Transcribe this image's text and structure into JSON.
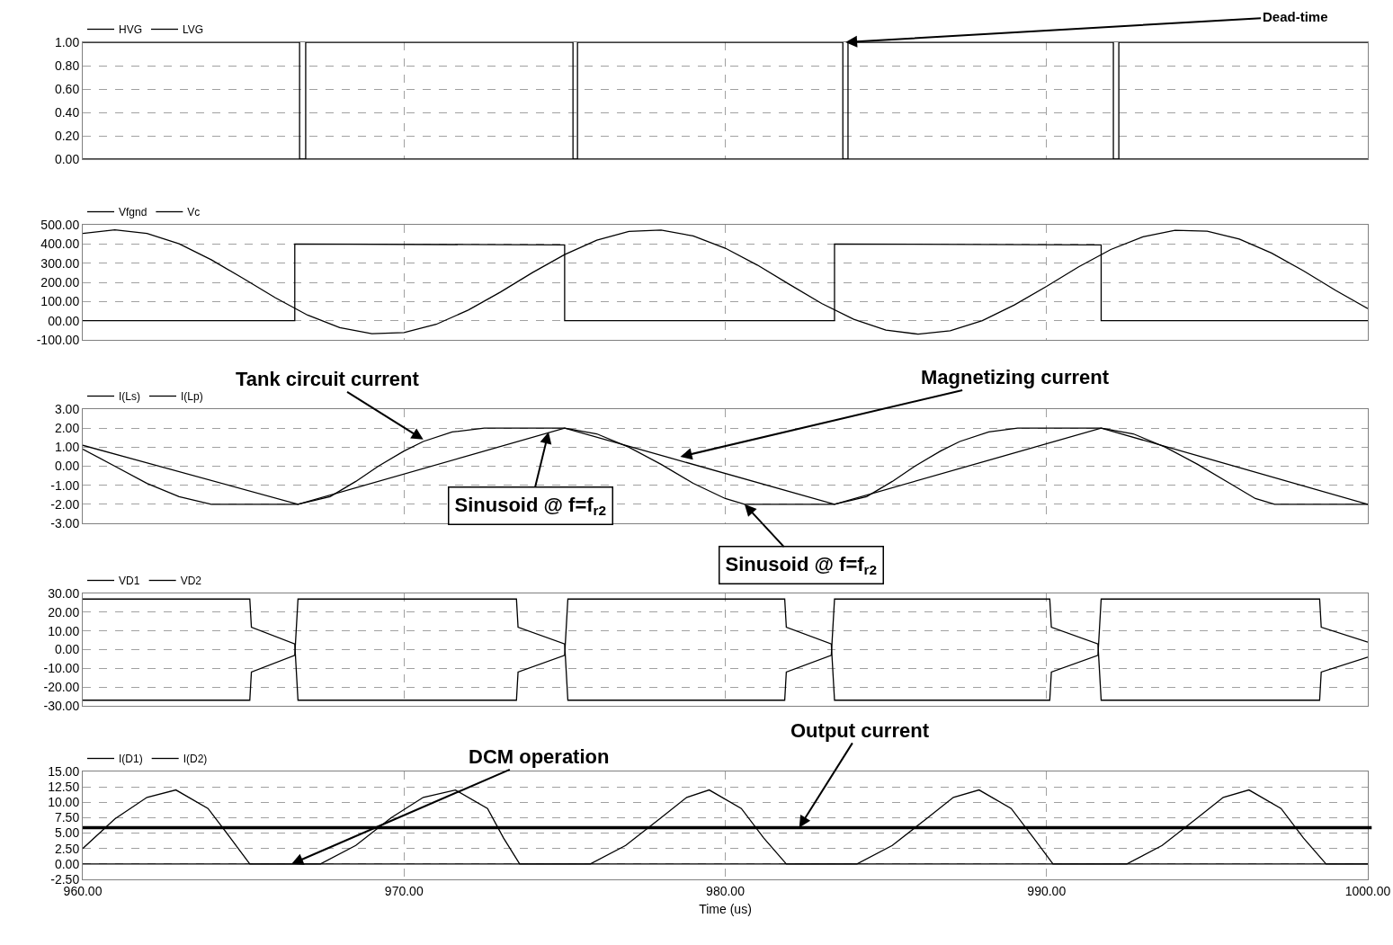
{
  "chart_data": [
    {
      "type": "line",
      "xlim": [
        960,
        1000
      ],
      "xticks": [
        960,
        970,
        980,
        990,
        1000
      ],
      "tick_labels": "y",
      "grid": true,
      "legend": "top left",
      "ylim": [
        0,
        1
      ],
      "yticks": [
        {
          "value": 0,
          "label": "0.00"
        },
        {
          "value": 0.2,
          "label": "0.20"
        },
        {
          "value": 0.4,
          "label": "0.40"
        },
        {
          "value": 0.6,
          "label": "0.60"
        },
        {
          "value": 0.8,
          "label": "0.80"
        },
        {
          "value": 1,
          "label": "1.00"
        }
      ],
      "series": [
        {
          "name": "HVG",
          "color": "#000000",
          "x": [
            960,
            966.75,
            966.75,
            975.4,
            975.4,
            983.66,
            983.66,
            992.25,
            992.25,
            1000
          ],
          "values": [
            1,
            1,
            0,
            0,
            1,
            1,
            0,
            0,
            1,
            1
          ]
        },
        {
          "name": "LVG",
          "color": "#000000",
          "x": [
            960,
            966.94,
            966.94,
            975.26,
            975.26,
            983.82,
            983.82,
            992.08,
            992.08,
            1000
          ],
          "values": [
            0,
            0,
            1,
            1,
            0,
            0,
            1,
            1,
            0,
            0
          ]
        }
      ],
      "annotations": [
        {
          "text": "Dead-time",
          "x": 983.74,
          "y": 1
        }
      ]
    },
    {
      "type": "line",
      "xlim": [
        960,
        1000
      ],
      "xticks": [
        960,
        970,
        980,
        990,
        1000
      ],
      "tick_labels": "y",
      "grid": true,
      "legend": "top left",
      "ylim": [
        -100,
        500
      ],
      "yticks": [
        {
          "value": -100,
          "label": "-100.00"
        },
        {
          "value": 0,
          "label": "00.00"
        },
        {
          "value": 100,
          "label": "100.00"
        },
        {
          "value": 200,
          "label": "200.00"
        },
        {
          "value": 300,
          "label": "300.00"
        },
        {
          "value": 400,
          "label": "400.00"
        },
        {
          "value": 500,
          "label": "500.00"
        }
      ],
      "series": [
        {
          "name": "Vfgnd",
          "color": "#000000",
          "x": [
            960,
            966.6,
            966.6,
            975.0,
            975.0,
            983.4,
            983.4,
            991.7,
            991.7,
            1000
          ],
          "values": [
            0,
            0,
            400,
            395,
            0,
            0,
            400,
            395,
            0,
            0
          ]
        },
        {
          "name": "Vc",
          "color": "#000000",
          "x": [
            960,
            961,
            962,
            963,
            964,
            965,
            966,
            967,
            968,
            969,
            970,
            971,
            972,
            973,
            974,
            975,
            976,
            977,
            978,
            979,
            980,
            981,
            982,
            983,
            984,
            985,
            986,
            987,
            988,
            989,
            990,
            991,
            992,
            993,
            994,
            995,
            996,
            997,
            998,
            999,
            1000
          ],
          "values": [
            455,
            474,
            455,
            401,
            318,
            220,
            119,
            29,
            -36,
            -68,
            -62,
            -19,
            55,
            149,
            251,
            345,
            420,
            465,
            472,
            442,
            378,
            290,
            189,
            90,
            7,
            -49,
            -70,
            -53,
            0,
            82,
            179,
            281,
            371,
            437,
            471,
            467,
            426,
            353,
            260,
            158,
            63
          ]
        }
      ]
    },
    {
      "type": "line",
      "xlim": [
        960,
        1000
      ],
      "xticks": [
        960,
        970,
        980,
        990,
        1000
      ],
      "tick_labels": "y",
      "grid": true,
      "legend": "top left",
      "ylim": [
        -3,
        3
      ],
      "yticks": [
        {
          "value": -3,
          "label": "-3.00"
        },
        {
          "value": -2,
          "label": "-2.00"
        },
        {
          "value": -1,
          "label": "-1.00"
        },
        {
          "value": 0,
          "label": "0.00"
        },
        {
          "value": 1,
          "label": "1.00"
        },
        {
          "value": 2,
          "label": "2.00"
        },
        {
          "value": 3,
          "label": "3.00"
        }
      ],
      "series": [
        {
          "name": "I(Ls)",
          "color": "#000000",
          "x": [
            960,
            961,
            962,
            963,
            964,
            966.7,
            967.7,
            968.5,
            969.2,
            970,
            970.6,
            971.5,
            972.5,
            975,
            976,
            977,
            978,
            979,
            980,
            980.6,
            983.4,
            984.4,
            985.2,
            985.9,
            986.7,
            987.3,
            988.2,
            989.1,
            991.7,
            992.7,
            993.7,
            994.7,
            995.7,
            996.5,
            997.1,
            1000
          ],
          "values": [
            0.9,
            0,
            -0.9,
            -1.6,
            -2,
            -2,
            -1.6,
            -0.8,
            0,
            0.8,
            1.3,
            1.8,
            2,
            2,
            1.7,
            1,
            0.1,
            -0.9,
            -1.7,
            -2,
            -2,
            -1.6,
            -0.8,
            0,
            0.8,
            1.3,
            1.8,
            2,
            2,
            1.7,
            1,
            0.1,
            -0.9,
            -1.7,
            -2,
            -2
          ]
        },
        {
          "name": "I(Lp)",
          "color": "#000000",
          "x": [
            960,
            966.7,
            975.0,
            983.4,
            991.7,
            1000
          ],
          "values": [
            1.1,
            -2,
            2,
            -2,
            2,
            -2
          ]
        }
      ],
      "annotations": [
        {
          "text": "Tank circuit current",
          "x": 970.6,
          "y": 1.4
        },
        {
          "text": "Magnetizing current",
          "x": 978.6,
          "y": 0.5
        },
        {
          "text": "Sinusoid @ f=f$_{r2}$",
          "x": 974.5,
          "y": 1.8
        },
        {
          "text": "Sinusoid @ f=f$_{r2}$",
          "x": 980.6,
          "y": -2
        }
      ]
    },
    {
      "type": "line",
      "xlim": [
        960,
        1000
      ],
      "xticks": [
        960,
        970,
        980,
        990,
        1000
      ],
      "tick_labels": "y",
      "grid": true,
      "legend": "top left",
      "ylim": [
        -30,
        30
      ],
      "yticks": [
        {
          "value": -30,
          "label": "-30.00"
        },
        {
          "value": -20,
          "label": "-20.00"
        },
        {
          "value": -10,
          "label": "-10.00"
        },
        {
          "value": 0,
          "label": "0.00"
        },
        {
          "value": 10,
          "label": "10.00"
        },
        {
          "value": 20,
          "label": "20.00"
        },
        {
          "value": 30,
          "label": "30.00"
        }
      ],
      "series": [
        {
          "name": "VD1",
          "color": "#000000",
          "x": [
            960,
            965.2,
            965.25,
            966.6,
            966.7,
            973.5,
            973.55,
            975.0,
            975.1,
            981.85,
            981.9,
            983.3,
            983.4,
            990.1,
            990.15,
            991.6,
            991.7,
            998.5,
            998.55,
            1000
          ],
          "values": [
            27,
            27,
            12,
            3,
            -27,
            -27,
            -12,
            -3,
            27,
            27,
            12,
            3,
            -27,
            -27,
            -12,
            -3,
            27,
            27,
            12,
            4
          ]
        },
        {
          "name": "VD2",
          "color": "#000000",
          "x": [
            960,
            965.2,
            965.25,
            966.6,
            966.7,
            973.5,
            973.55,
            975.0,
            975.1,
            981.85,
            981.9,
            983.3,
            983.4,
            990.1,
            990.15,
            991.6,
            991.7,
            998.5,
            998.55,
            1000
          ],
          "values": [
            -27,
            -27,
            -12,
            -3,
            27,
            27,
            12,
            3,
            -27,
            -27,
            -12,
            -3,
            27,
            27,
            12,
            3,
            -27,
            -27,
            -12,
            -4
          ]
        }
      ]
    },
    {
      "type": "line",
      "xlim": [
        960,
        1000
      ],
      "xticks": [
        {
          "value": 960,
          "label": "960.00"
        },
        {
          "value": 970,
          "label": "970.00"
        },
        {
          "value": 980,
          "label": "980.00"
        },
        {
          "value": 990,
          "label": "990.00"
        },
        {
          "value": 1000,
          "label": "1000.00"
        }
      ],
      "xlabel": "Time (us)",
      "grid": true,
      "legend": "top left",
      "ylim": [
        -2.5,
        15
      ],
      "yticks": [
        {
          "value": -2.5,
          "label": "-2.50"
        },
        {
          "value": 0,
          "label": "0.00"
        },
        {
          "value": 2.5,
          "label": "2.50"
        },
        {
          "value": 5,
          "label": "5.00"
        },
        {
          "value": 7.5,
          "label": "7.50"
        },
        {
          "value": 10,
          "label": "10.00"
        },
        {
          "value": 12.5,
          "label": "12.50"
        },
        {
          "value": 15,
          "label": "15.00"
        }
      ],
      "series": [
        {
          "name": "I(D1)",
          "color": "#000000",
          "x": [
            960,
            961,
            962,
            962.9,
            963.9,
            964.6,
            965.2,
            975.8,
            976.9,
            978,
            978.8,
            979.5,
            980.5,
            981.2,
            981.9,
            992.5,
            993.6,
            994.7,
            995.5,
            996.3,
            997.3,
            998,
            998.7,
            1000
          ],
          "values": [
            2.5,
            7.3,
            10.8,
            12,
            9,
            4.2,
            0,
            0,
            3,
            7.5,
            10.8,
            12,
            9,
            4.2,
            0,
            0,
            3,
            7.5,
            10.8,
            12,
            9,
            4.2,
            0,
            0
          ]
        },
        {
          "name": "I(D2)",
          "color": "#000000",
          "x": [
            960,
            967.4,
            968.5,
            969.6,
            970.6,
            971.6,
            972.6,
            973.1,
            973.6,
            984.1,
            985.2,
            986.3,
            987.1,
            987.9,
            988.9,
            989.6,
            990.2,
            1000
          ],
          "values": [
            0,
            0,
            3,
            7.5,
            10.8,
            12,
            9,
            4.2,
            0,
            0,
            3,
            7.5,
            10.8,
            12,
            9,
            4.2,
            0,
            0
          ]
        }
      ],
      "ref_lines": [
        {
          "axis": "y",
          "value": 5.9,
          "color": "#000000"
        }
      ],
      "annotations": [
        {
          "text": "DCM operation",
          "x": 966.5,
          "y": 0
        },
        {
          "text": "Output current",
          "x": 982.3,
          "y": 5.9
        }
      ]
    }
  ]
}
